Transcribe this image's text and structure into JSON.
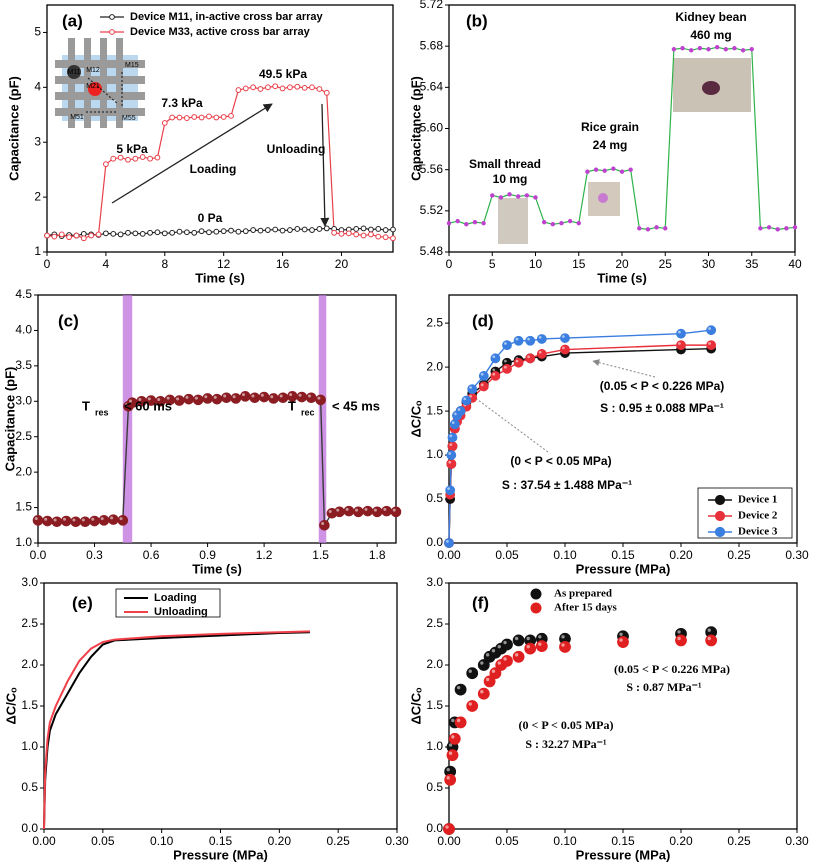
{
  "chart_data": [
    {
      "type": "line",
      "label": "(a)",
      "x_label": "Time (s)",
      "y_label": "Capacitance (pF)",
      "xlim": [
        0,
        23.5
      ],
      "xticks": [
        0,
        4,
        8,
        12,
        16,
        20
      ],
      "ylim": [
        1,
        5.5
      ],
      "yticks": [
        1,
        2,
        3,
        4,
        5
      ],
      "x": [
        0,
        0.5,
        1,
        1.5,
        2,
        2.5,
        3,
        3.5,
        4,
        4.5,
        5,
        5.5,
        6,
        6.5,
        7,
        7.5,
        8,
        8.5,
        9,
        9.5,
        10,
        10.5,
        11,
        11.5,
        12,
        12.5,
        13,
        13.5,
        14,
        14.5,
        15,
        15.5,
        16,
        16.5,
        17,
        17.5,
        18,
        18.5,
        19,
        19.5,
        20,
        20.5,
        21,
        21.5,
        22,
        22.5,
        23,
        23.5
      ],
      "series": [
        {
          "name": "Device M11, in-active cross bar array",
          "color": "#222222",
          "values": [
            1.3,
            1.32,
            1.29,
            1.31,
            1.3,
            1.33,
            1.32,
            1.31,
            1.34,
            1.33,
            1.32,
            1.35,
            1.34,
            1.33,
            1.35,
            1.36,
            1.34,
            1.35,
            1.37,
            1.36,
            1.35,
            1.38,
            1.36,
            1.37,
            1.38,
            1.39,
            1.37,
            1.38,
            1.4,
            1.39,
            1.4,
            1.41,
            1.39,
            1.4,
            1.42,
            1.41,
            1.4,
            1.42,
            1.43,
            1.42,
            1.4,
            1.41,
            1.42,
            1.43,
            1.41,
            1.42,
            1.4,
            1.41
          ]
        },
        {
          "name": "Device M33, active cross bar array",
          "color": "#e8404a",
          "values": [
            1.3,
            1.28,
            1.32,
            1.27,
            1.3,
            1.25,
            1.3,
            1.32,
            2.6,
            2.7,
            2.72,
            2.68,
            2.7,
            2.73,
            2.7,
            2.72,
            3.35,
            3.45,
            3.45,
            3.44,
            3.46,
            3.45,
            3.47,
            3.45,
            3.46,
            3.48,
            3.95,
            3.98,
            4.0,
            3.97,
            4.0,
            4.02,
            3.98,
            4.0,
            4.01,
            3.99,
            4.0,
            3.97,
            3.9,
            1.35,
            1.33,
            1.34,
            1.32,
            1.3,
            1.32,
            1.28,
            1.27,
            1.25
          ]
        }
      ],
      "annotations": [
        "5 kPa",
        "7.3 kPa",
        "49.5 kPa",
        "Loading",
        "Unloading",
        "0 Pa",
        "M11",
        "M12",
        "M15",
        "M21",
        "M51",
        "M55"
      ]
    },
    {
      "type": "line",
      "label": "(b)",
      "x_label": "Time (s)",
      "y_label": "Capacitance (pF)",
      "xlim": [
        0,
        40
      ],
      "xticks": [
        0,
        5,
        10,
        15,
        20,
        25,
        30,
        35,
        40
      ],
      "ylim": [
        5.48,
        5.72
      ],
      "yticks": [
        5.48,
        5.52,
        5.56,
        {
          "value": 5.6,
          "label": "5.60"
        },
        5.64,
        5.68,
        5.72
      ],
      "x": [
        0,
        1,
        2,
        3,
        4,
        5,
        6,
        7,
        8,
        9,
        10,
        11,
        12,
        13,
        14,
        15,
        16,
        17,
        18,
        19,
        20,
        21,
        22,
        23,
        24,
        25,
        26,
        27,
        28,
        29,
        30,
        31,
        32,
        33,
        34,
        35,
        36,
        37,
        38,
        39,
        40
      ],
      "series": [
        {
          "color": "#c040d0",
          "line_color": "#2fb24a",
          "values": [
            5.508,
            5.51,
            5.507,
            5.509,
            5.508,
            5.535,
            5.533,
            5.536,
            5.534,
            5.535,
            5.533,
            5.509,
            5.507,
            5.508,
            5.51,
            5.508,
            5.558,
            5.56,
            5.559,
            5.561,
            5.558,
            5.56,
            5.503,
            5.502,
            5.504,
            5.503,
            5.677,
            5.678,
            5.676,
            5.678,
            5.677,
            5.679,
            5.677,
            5.678,
            5.676,
            5.677,
            5.503,
            5.504,
            5.502,
            5.503,
            5.504
          ]
        }
      ],
      "annotations": [
        "Small  thread",
        "10 mg",
        "Rice grain",
        "24 mg",
        "Kidney bean",
        "460 mg"
      ]
    },
    {
      "type": "line",
      "label": "(c)",
      "x_label": "Time (s)",
      "y_label": "Capacitance (pF)",
      "xlim": [
        0,
        1.9
      ],
      "xticks": [
        {
          "value": 0,
          "label": "0.0"
        },
        0.3,
        0.6,
        0.9,
        1.2,
        1.5,
        1.8
      ],
      "ylim": [
        1,
        4.5
      ],
      "yticks": [
        {
          "value": 1,
          "label": "1.0"
        },
        1.5,
        {
          "value": 2,
          "label": "2.0"
        },
        2.5,
        {
          "value": 3,
          "label": "3.0"
        },
        3.5,
        {
          "value": 4,
          "label": "4.0"
        },
        4.5
      ],
      "bands": [
        [
          0.45,
          0.5
        ],
        [
          1.49,
          1.53
        ]
      ],
      "band_color": "#bd6fdc",
      "x": [
        0,
        0.05,
        0.1,
        0.15,
        0.2,
        0.25,
        0.3,
        0.35,
        0.4,
        0.45,
        0.48,
        0.5,
        0.55,
        0.6,
        0.65,
        0.7,
        0.75,
        0.8,
        0.85,
        0.9,
        0.95,
        1.0,
        1.05,
        1.1,
        1.15,
        1.2,
        1.25,
        1.3,
        1.35,
        1.4,
        1.45,
        1.5,
        1.52,
        1.56,
        1.6,
        1.65,
        1.7,
        1.75,
        1.8,
        1.85,
        1.9
      ],
      "series": [
        {
          "color": "#8a1c22",
          "line_color": "#3a3a3a",
          "values": [
            1.32,
            1.31,
            1.3,
            1.31,
            1.3,
            1.3,
            1.31,
            1.32,
            1.33,
            1.32,
            2.93,
            2.98,
            3.0,
            3.01,
            3.0,
            3.02,
            3.01,
            3.03,
            3.02,
            3.04,
            3.03,
            3.05,
            3.04,
            3.07,
            3.05,
            3.06,
            3.04,
            3.05,
            3.07,
            3.06,
            3.05,
            3.02,
            1.25,
            1.42,
            1.44,
            1.45,
            1.44,
            1.45,
            1.44,
            1.45,
            1.44
          ]
        }
      ],
      "annotations": [
        "T",
        "res",
        "< 60 ms",
        "T",
        "rec",
        "< 45 ms"
      ]
    },
    {
      "type": "line",
      "label": "(d)",
      "x_label": "Pressure (MPa)",
      "y_label": "ΔC/Cₒ",
      "xlim": [
        0,
        0.3
      ],
      "xticks": [
        {
          "value": 0,
          "label": "0.00"
        },
        0.05,
        {
          "value": 0.1,
          "label": "0.10"
        },
        0.15,
        {
          "value": 0.2,
          "label": "0.20"
        },
        0.25,
        {
          "value": 0.3,
          "label": "0.30"
        }
      ],
      "ylim": [
        0,
        2.82
      ],
      "yticks": [
        {
          "value": 0,
          "label": "0.0"
        },
        0.5,
        {
          "value": 1,
          "label": "1.0"
        },
        1.5,
        {
          "value": 2,
          "label": "2.0"
        },
        2.5
      ],
      "x": [
        0,
        0.001,
        0.002,
        0.003,
        0.005,
        0.007,
        0.01,
        0.015,
        0.02,
        0.03,
        0.04,
        0.05,
        0.06,
        0.07,
        0.08,
        0.1,
        0.2,
        0.226
      ],
      "series": [
        {
          "name": "Device 1",
          "color": "#111111",
          "values": [
            0,
            0.5,
            0.9,
            1.1,
            1.3,
            1.45,
            1.5,
            1.6,
            1.7,
            1.8,
            1.95,
            2.05,
            2.08,
            2.1,
            2.12,
            2.16,
            2.2,
            2.21
          ]
        },
        {
          "name": "Device 2",
          "color": "#e8303a",
          "values": [
            0,
            0.55,
            0.9,
            1.1,
            1.3,
            1.38,
            1.45,
            1.55,
            1.65,
            1.78,
            1.9,
            1.98,
            2.05,
            2.1,
            2.15,
            2.2,
            2.25,
            2.25
          ]
        },
        {
          "name": "Device 3",
          "color": "#3a7ee0",
          "values": [
            0,
            0.6,
            1.0,
            1.2,
            1.35,
            1.45,
            1.5,
            1.62,
            1.75,
            1.9,
            2.1,
            2.25,
            2.3,
            2.3,
            2.32,
            2.33,
            2.38,
            2.42
          ]
        }
      ],
      "annotations": [
        "(0.05 < P < 0.226 MPa)",
        "S : 0.95 ± 0.088 MPa⁻¹",
        "(0 < P < 0.05 MPa)",
        "S : 37.54 ± 1.488  MPa⁻¹"
      ]
    },
    {
      "type": "line",
      "label": "(e)",
      "x_label": "Pressure (MPa)",
      "y_label": "ΔC/Cₒ",
      "xlim": [
        0,
        0.3
      ],
      "xticks": [
        {
          "value": 0,
          "label": "0.00"
        },
        0.05,
        {
          "value": 0.1,
          "label": "0.10"
        },
        0.15,
        {
          "value": 0.2,
          "label": "0.20"
        },
        0.25,
        {
          "value": 0.3,
          "label": "0.30"
        }
      ],
      "ylim": [
        0,
        3
      ],
      "yticks": [
        {
          "value": 0,
          "label": "0.0"
        },
        0.5,
        {
          "value": 1,
          "label": "1.0"
        },
        1.5,
        {
          "value": 2,
          "label": "2.0"
        },
        2.5,
        {
          "value": 3,
          "label": "3.0"
        }
      ],
      "x": [
        0,
        0.001,
        0.003,
        0.005,
        0.01,
        0.02,
        0.03,
        0.04,
        0.05,
        0.06,
        0.1,
        0.15,
        0.2,
        0.226
      ],
      "series": [
        {
          "name": "Loading",
          "color": "#000000",
          "values": [
            0,
            0.6,
            1.0,
            1.2,
            1.4,
            1.65,
            1.9,
            2.1,
            2.25,
            2.3,
            2.33,
            2.36,
            2.39,
            2.4
          ]
        },
        {
          "name": "Unloading",
          "color": "#f0404a",
          "values": [
            0,
            0.7,
            1.1,
            1.3,
            1.5,
            1.8,
            2.05,
            2.2,
            2.28,
            2.31,
            2.35,
            2.38,
            2.4,
            2.41
          ]
        }
      ],
      "annotations": []
    },
    {
      "type": "scatter",
      "label": "(f)",
      "x_label": "Pressure (MPa)",
      "y_label": "ΔC/Cₒ",
      "xlim": [
        0,
        0.3
      ],
      "xticks": [
        {
          "value": 0,
          "label": "0.00"
        },
        0.05,
        {
          "value": 0.1,
          "label": "0.10"
        },
        0.15,
        {
          "value": 0.2,
          "label": "0.20"
        },
        0.25,
        {
          "value": 0.3,
          "label": "0.30"
        }
      ],
      "ylim": [
        0,
        3
      ],
      "yticks": [
        {
          "value": 0,
          "label": "0.0"
        },
        0.5,
        {
          "value": 1,
          "label": "1.0"
        },
        1.5,
        {
          "value": 2,
          "label": "2.0"
        },
        2.5,
        {
          "value": 3,
          "label": "3.0"
        }
      ],
      "x": [
        0,
        0.001,
        0.003,
        0.005,
        0.01,
        0.02,
        0.03,
        0.035,
        0.04,
        0.045,
        0.05,
        0.06,
        0.07,
        0.08,
        0.1,
        0.15,
        0.2,
        0.226
      ],
      "series": [
        {
          "name": "As prepared",
          "color": "#111111",
          "values": [
            0,
            0.7,
            1.0,
            1.3,
            1.7,
            1.9,
            2.0,
            2.1,
            2.15,
            2.2,
            2.25,
            2.3,
            2.3,
            2.32,
            2.32,
            2.35,
            2.38,
            2.4
          ]
        },
        {
          "name": "After 15 days",
          "color": "#e02020",
          "values": [
            0,
            0.6,
            0.9,
            1.1,
            1.3,
            1.5,
            1.65,
            1.8,
            1.9,
            2.0,
            2.05,
            2.1,
            2.2,
            2.23,
            2.22,
            2.28,
            2.3,
            2.3
          ]
        }
      ],
      "annotations": [
        "(0.05 < P < 0.226 MPa)",
        "S : 0.87 MPa⁻¹",
        "(0 < P < 0.05 MPa)",
        "S : 32.27  MPa⁻¹"
      ]
    }
  ]
}
